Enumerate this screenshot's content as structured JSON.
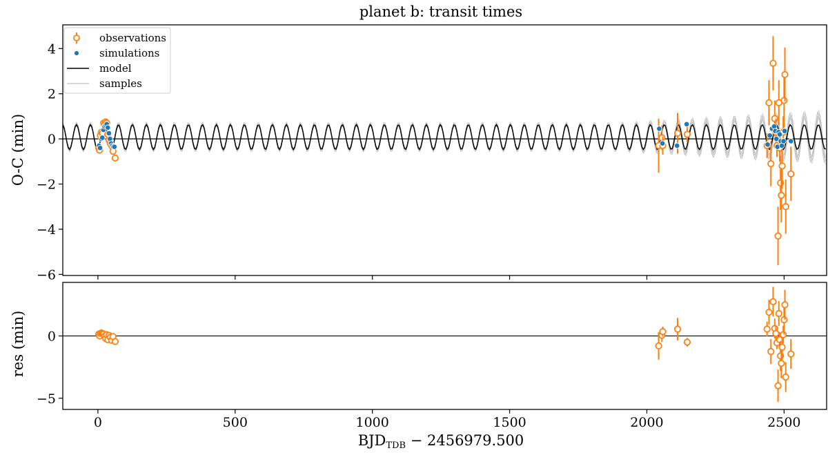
{
  "chart_data": {
    "type": "scatter",
    "title": "planet b: transit times",
    "xlabel_main": "BJD",
    "xlabel_sub": "TDB",
    "xlabel_tail": " − 2456979.500",
    "xlim": [
      -128,
      2655
    ],
    "xticks": [
      0,
      500,
      1000,
      1500,
      2000,
      2500
    ],
    "grid": false,
    "legend_position": "top-left",
    "colors": {
      "observations": "#ff7f0e",
      "simulations": "#1f77b4",
      "model": "#000000",
      "samples": "#b0b0b0"
    },
    "legend": [
      "observations",
      "simulations",
      "model",
      "samples"
    ],
    "model": {
      "period_days": 51.0,
      "phase_days": 11.0,
      "amplitude_min": 0.55,
      "offset_min": 0.08,
      "step_days": 5
    },
    "top_panel": {
      "ylabel": "O-C (min)",
      "ylim": [
        -6.05,
        5.05
      ],
      "yticks": [
        -6,
        -4,
        -2,
        0,
        2,
        4
      ],
      "observations": [
        {
          "x": 3,
          "y": -0.4,
          "err": 0.15
        },
        {
          "x": 6,
          "y": -0.5,
          "err": 0.15
        },
        {
          "x": 9,
          "y": 0.15,
          "err": 0.15
        },
        {
          "x": 13,
          "y": 0.3,
          "err": 0.15
        },
        {
          "x": 17,
          "y": 0.25,
          "err": 0.15
        },
        {
          "x": 21,
          "y": 0.7,
          "err": 0.15
        },
        {
          "x": 25,
          "y": 0.6,
          "err": 0.15
        },
        {
          "x": 28,
          "y": 0.75,
          "err": 0.15
        },
        {
          "x": 32,
          "y": 0.7,
          "err": 0.15
        },
        {
          "x": 36,
          "y": 0.2,
          "err": 0.15
        },
        {
          "x": 40,
          "y": -0.05,
          "err": 0.15
        },
        {
          "x": 45,
          "y": -0.2,
          "err": 0.15
        },
        {
          "x": 50,
          "y": -0.3,
          "err": 0.15
        },
        {
          "x": 55,
          "y": -0.55,
          "err": 0.15
        },
        {
          "x": 63,
          "y": -0.85,
          "err": 0.15
        },
        {
          "x": 2043,
          "y": -0.3,
          "err": 1.2
        },
        {
          "x": 2055,
          "y": 0.05,
          "err": 0.55
        },
        {
          "x": 2058,
          "y": -0.3,
          "err": 0.4
        },
        {
          "x": 2112,
          "y": 0.25,
          "err": 0.9
        },
        {
          "x": 2147,
          "y": 0.2,
          "err": 0.35
        },
        {
          "x": 2438,
          "y": -0.3,
          "err": 0.55
        },
        {
          "x": 2445,
          "y": 1.6,
          "err": 1.0
        },
        {
          "x": 2452,
          "y": -1.1,
          "err": 1.0
        },
        {
          "x": 2460,
          "y": 3.35,
          "err": 1.2
        },
        {
          "x": 2466,
          "y": 0.9,
          "err": 0.8
        },
        {
          "x": 2470,
          "y": 0.3,
          "err": 0.6
        },
        {
          "x": 2474,
          "y": -0.3,
          "err": 0.5
        },
        {
          "x": 2478,
          "y": -4.3,
          "err": 1.3
        },
        {
          "x": 2481,
          "y": 1.6,
          "err": 1.0
        },
        {
          "x": 2484,
          "y": -0.4,
          "err": 0.6
        },
        {
          "x": 2487,
          "y": -1.95,
          "err": 1.2
        },
        {
          "x": 2490,
          "y": -2.5,
          "err": 1.2
        },
        {
          "x": 2493,
          "y": -1.2,
          "err": 1.0
        },
        {
          "x": 2497,
          "y": 0.3,
          "err": 0.7
        },
        {
          "x": 2500,
          "y": 1.7,
          "err": 1.2
        },
        {
          "x": 2503,
          "y": 2.85,
          "err": 1.2
        },
        {
          "x": 2506,
          "y": -3.0,
          "err": 1.2
        },
        {
          "x": 2525,
          "y": -1.55,
          "err": 1.2
        }
      ],
      "simulations": [
        {
          "x": 4,
          "y": -0.3
        },
        {
          "x": 8,
          "y": -0.4
        },
        {
          "x": 12,
          "y": 0.0
        },
        {
          "x": 16,
          "y": 0.05
        },
        {
          "x": 20,
          "y": 0.4
        },
        {
          "x": 24,
          "y": 0.55
        },
        {
          "x": 28,
          "y": 0.6
        },
        {
          "x": 32,
          "y": 0.65
        },
        {
          "x": 36,
          "y": 0.5
        },
        {
          "x": 40,
          "y": 0.25
        },
        {
          "x": 44,
          "y": 0.0
        },
        {
          "x": 48,
          "y": -0.2
        },
        {
          "x": 52,
          "y": -0.3
        },
        {
          "x": 56,
          "y": -0.35
        },
        {
          "x": 60,
          "y": -0.35
        },
        {
          "x": 2045,
          "y": 0.45
        },
        {
          "x": 2057,
          "y": -0.2
        },
        {
          "x": 2110,
          "y": -0.3
        },
        {
          "x": 2145,
          "y": 0.65
        },
        {
          "x": 2440,
          "y": -0.25
        },
        {
          "x": 2448,
          "y": 0.15
        },
        {
          "x": 2456,
          "y": 0.45
        },
        {
          "x": 2464,
          "y": 0.55
        },
        {
          "x": 2468,
          "y": 0.35
        },
        {
          "x": 2472,
          "y": 0.0
        },
        {
          "x": 2476,
          "y": -0.35
        },
        {
          "x": 2480,
          "y": 0.3
        },
        {
          "x": 2484,
          "y": 0.2
        },
        {
          "x": 2488,
          "y": -0.1
        },
        {
          "x": 2492,
          "y": -0.3
        },
        {
          "x": 2498,
          "y": -0.1
        },
        {
          "x": 2502,
          "y": 0.35
        },
        {
          "x": 2525,
          "y": -0.1
        }
      ]
    },
    "bottom_panel": {
      "ylabel": "res (min)",
      "ylim": [
        -5.9,
        4.3
      ],
      "yticks": [
        -5,
        0
      ],
      "observations": [
        {
          "x": 3,
          "y": 0.15,
          "err": 0.15
        },
        {
          "x": 6,
          "y": 0.0,
          "err": 0.15
        },
        {
          "x": 9,
          "y": 0.2,
          "err": 0.15
        },
        {
          "x": 13,
          "y": 0.25,
          "err": 0.15
        },
        {
          "x": 17,
          "y": 0.2,
          "err": 0.15
        },
        {
          "x": 21,
          "y": 0.15,
          "err": 0.15
        },
        {
          "x": 25,
          "y": 0.0,
          "err": 0.15
        },
        {
          "x": 28,
          "y": -0.2,
          "err": 0.15
        },
        {
          "x": 32,
          "y": 0.1,
          "err": 0.15
        },
        {
          "x": 36,
          "y": -0.3,
          "err": 0.15
        },
        {
          "x": 40,
          "y": 0.05,
          "err": 0.15
        },
        {
          "x": 45,
          "y": -0.1,
          "err": 0.15
        },
        {
          "x": 50,
          "y": -0.35,
          "err": 0.15
        },
        {
          "x": 55,
          "y": -0.05,
          "err": 0.15
        },
        {
          "x": 63,
          "y": -0.45,
          "err": 0.15
        },
        {
          "x": 2043,
          "y": -0.8,
          "err": 1.1
        },
        {
          "x": 2055,
          "y": 0.05,
          "err": 0.55
        },
        {
          "x": 2058,
          "y": 0.35,
          "err": 0.4
        },
        {
          "x": 2112,
          "y": 0.55,
          "err": 0.9
        },
        {
          "x": 2147,
          "y": -0.5,
          "err": 0.35
        },
        {
          "x": 2438,
          "y": 0.55,
          "err": 0.6
        },
        {
          "x": 2445,
          "y": 1.9,
          "err": 1.0
        },
        {
          "x": 2452,
          "y": -1.25,
          "err": 1.0
        },
        {
          "x": 2460,
          "y": 2.75,
          "err": 1.2
        },
        {
          "x": 2466,
          "y": 0.6,
          "err": 0.8
        },
        {
          "x": 2470,
          "y": 0.2,
          "err": 0.6
        },
        {
          "x": 2474,
          "y": -0.55,
          "err": 0.5
        },
        {
          "x": 2478,
          "y": -4.0,
          "err": 1.3
        },
        {
          "x": 2481,
          "y": 1.8,
          "err": 1.0
        },
        {
          "x": 2484,
          "y": -0.3,
          "err": 0.6
        },
        {
          "x": 2487,
          "y": -1.6,
          "err": 1.2
        },
        {
          "x": 2490,
          "y": -2.2,
          "err": 1.2
        },
        {
          "x": 2493,
          "y": -0.9,
          "err": 1.0
        },
        {
          "x": 2497,
          "y": 0.1,
          "err": 0.7
        },
        {
          "x": 2500,
          "y": 1.3,
          "err": 1.2
        },
        {
          "x": 2503,
          "y": 2.5,
          "err": 1.2
        },
        {
          "x": 2506,
          "y": -3.3,
          "err": 1.2
        },
        {
          "x": 2525,
          "y": -1.45,
          "err": 1.2
        }
      ]
    }
  }
}
